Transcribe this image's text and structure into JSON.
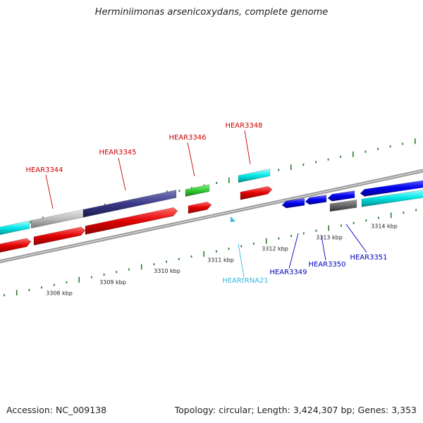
{
  "title": "Herminiimonas arsenicoxydans, complete genome",
  "footer": {
    "accession": "Accession: NC_009138",
    "summary": "Topology: circular; Length: 3,424,307 bp; Genes: 3,353"
  },
  "ticks": [
    {
      "label": "3308 kbp"
    },
    {
      "label": "3309 kbp"
    },
    {
      "label": "3310 kbp"
    },
    {
      "label": "3311 kbp"
    },
    {
      "label": "3312 kbp"
    },
    {
      "label": "3313 kbp"
    },
    {
      "label": "3314 kbp"
    }
  ],
  "gene_labels": [
    {
      "text": "HEAR3344",
      "color": "#cc0000"
    },
    {
      "text": "HEAR3345",
      "color": "#cc0000"
    },
    {
      "text": "HEAR3346",
      "color": "#cc0000"
    },
    {
      "text": "HEAR3348",
      "color": "#cc0000"
    },
    {
      "text": "HEARtRNA21",
      "color": "#33bbdd"
    },
    {
      "text": "HEAR3349",
      "color": "#0000bb"
    },
    {
      "text": "HEAR3350",
      "color": "#0000bb"
    },
    {
      "text": "HEAR3351",
      "color": "#0000bb"
    }
  ],
  "colors": {
    "forward_cds": "#e00000",
    "reverse_cds": "#0000ee",
    "cyan_track": "#00e5e5",
    "grey_track": "#bbbbbb",
    "navy_track": "#3a3a8a",
    "green_track": "#33cc33",
    "dark_grey": "#666666",
    "trna": "#33bbdd",
    "tick": "#2a7a2a",
    "backbone": "#888888"
  }
}
